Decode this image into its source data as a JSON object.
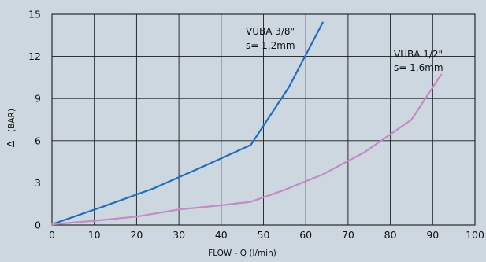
{
  "chart_data": {
    "type": "line",
    "xlabel": "FLOW - Q (l/min)",
    "ylabel_symbol": "Δ",
    "ylabel": "(BAR)",
    "xlim": [
      0,
      100
    ],
    "ylim": [
      0,
      15
    ],
    "x_ticks": [
      "0",
      "10",
      "20",
      "30",
      "40",
      "50",
      "60",
      "70",
      "80",
      "90",
      "100"
    ],
    "y_ticks": [
      "0",
      "3",
      "6",
      "9",
      "12",
      "15"
    ],
    "grid": true,
    "colors": {
      "background": "#ccd7df",
      "grid": "#1a1a1a"
    },
    "series": [
      {
        "label_line1": "VUBA 3/8\"",
        "label_line2": "s= 1,2mm",
        "color": "#1f6fc0",
        "points": [
          [
            0,
            0.05
          ],
          [
            12,
            1.3
          ],
          [
            24,
            2.6
          ],
          [
            36,
            4.2
          ],
          [
            47,
            5.7
          ],
          [
            56,
            9.8
          ],
          [
            64,
            14.4
          ]
        ]
      },
      {
        "label_line1": "VUBA 1/2\"",
        "label_line2": "s= 1,6mm",
        "color": "#c68ac6",
        "points": [
          [
            0,
            0.05
          ],
          [
            10,
            0.3
          ],
          [
            20,
            0.6
          ],
          [
            30,
            1.1
          ],
          [
            40,
            1.4
          ],
          [
            47,
            1.65
          ],
          [
            55,
            2.5
          ],
          [
            64,
            3.6
          ],
          [
            74,
            5.2
          ],
          [
            85,
            7.5
          ],
          [
            92,
            10.7
          ]
        ]
      }
    ]
  }
}
